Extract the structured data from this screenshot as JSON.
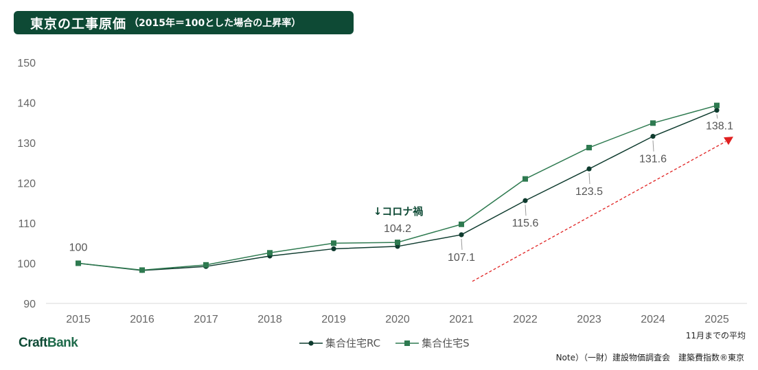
{
  "header": {
    "title": "東京の工事原価",
    "subtitle": "（2015年＝100とした場合の上昇率）"
  },
  "brand": {
    "part1": "Craft",
    "part2": "Bank"
  },
  "notes": {
    "period": "11月までの平均",
    "source": "Note）（一財）建設物価調査会　建築費指数®東京"
  },
  "annotation": {
    "covid": "↓コロナ禍"
  },
  "colors": {
    "rc": "#0e3b2e",
    "s": "#2e7a50",
    "trend": "#e02020",
    "title_bg": "#0e4a35"
  },
  "chart_data": {
    "type": "line",
    "title": "東京の工事原価（2015年＝100とした場合の上昇率）",
    "categories": [
      "2015",
      "2016",
      "2017",
      "2018",
      "2019",
      "2020",
      "2021",
      "2022",
      "2023",
      "2024",
      "2025"
    ],
    "ylim": [
      90,
      150
    ],
    "yticks": [
      90,
      100,
      110,
      120,
      130,
      140,
      150
    ],
    "series": [
      {
        "name": "集合住宅RC",
        "marker": "circle",
        "values": [
          100,
          98.2,
          99.2,
          101.8,
          103.6,
          104.2,
          107.1,
          115.6,
          123.5,
          131.6,
          138.1
        ]
      },
      {
        "name": "集合住宅S",
        "marker": "square",
        "values": [
          100,
          98.3,
          99.6,
          102.6,
          105.0,
          105.2,
          109.7,
          121.0,
          128.8,
          134.9,
          139.3
        ]
      }
    ],
    "data_labels": [
      {
        "category": "2015",
        "value": 100,
        "text": "100"
      },
      {
        "category": "2020",
        "value": 104.2,
        "text": "104.2"
      },
      {
        "category": "2021",
        "value": 107.1,
        "text": "107.1"
      },
      {
        "category": "2022",
        "value": 115.6,
        "text": "115.6"
      },
      {
        "category": "2023",
        "value": 123.5,
        "text": "123.5"
      },
      {
        "category": "2024",
        "value": 131.6,
        "text": "131.6"
      },
      {
        "category": "2025",
        "value": 138.1,
        "text": "138.1"
      }
    ],
    "trend_arrow": {
      "from": [
        "2021",
        95.5
      ],
      "to": [
        "2025",
        131
      ]
    },
    "legend": "bottom-center",
    "grid": false
  }
}
